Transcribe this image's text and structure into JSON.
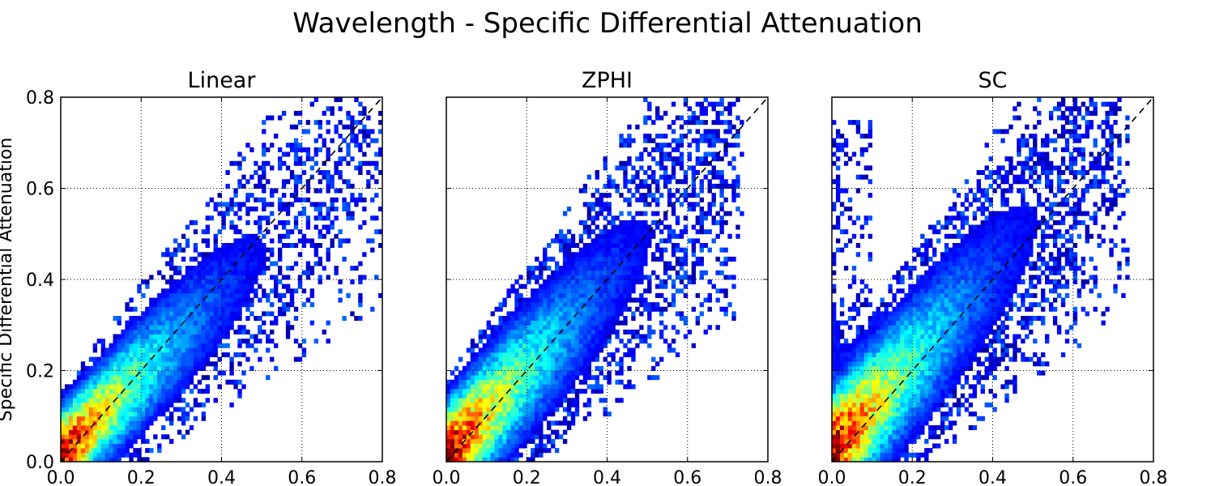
{
  "figure": {
    "title": "Wavelength - Specific Differential Attenuation"
  },
  "shared_ylabel": "Specific Differential Attenuation",
  "chart_data": [
    {
      "type": "heatmap",
      "title": "Linear",
      "xlim": [
        0.0,
        0.8
      ],
      "ylim": [
        0.0,
        0.8
      ],
      "xticks": [
        "0.0",
        "0.2",
        "0.4",
        "0.6",
        "0.8"
      ],
      "yticks": [
        "0.0",
        "0.2",
        "0.4",
        "0.6",
        "0.8"
      ],
      "grid": true,
      "reference_line": "y = x (dashed)",
      "colormap": "jet",
      "structure": {
        "slope": 0.88,
        "intercept": 0.015,
        "core_spread": 0.045,
        "core_extent": 0.42,
        "tail_extent": 0.78,
        "scatter_density": 0.45,
        "vertical_cluster": false
      }
    },
    {
      "type": "heatmap",
      "title": "ZPHI",
      "xlim": [
        0.0,
        0.8
      ],
      "ylim": [
        0.0,
        0.8
      ],
      "xticks": [
        "0.0",
        "0.2",
        "0.4",
        "0.6",
        "0.8"
      ],
      "yticks": [],
      "grid": true,
      "reference_line": "y = x (dashed)",
      "colormap": "jet",
      "structure": {
        "slope": 0.95,
        "intercept": 0.01,
        "core_spread": 0.055,
        "core_extent": 0.4,
        "tail_extent": 0.72,
        "scatter_density": 0.55,
        "vertical_cluster": false
      }
    },
    {
      "type": "heatmap",
      "title": "SC",
      "xlim": [
        0.0,
        0.8
      ],
      "ylim": [
        0.0,
        0.8
      ],
      "xticks": [
        "0.0",
        "0.2",
        "0.4",
        "0.6",
        "0.8"
      ],
      "yticks": [],
      "grid": true,
      "reference_line": "y = x (dashed)",
      "colormap": "jet",
      "structure": {
        "slope": 0.98,
        "intercept": 0.02,
        "core_spread": 0.06,
        "core_extent": 0.42,
        "tail_extent": 0.72,
        "scatter_density": 0.55,
        "vertical_cluster": true
      }
    }
  ]
}
